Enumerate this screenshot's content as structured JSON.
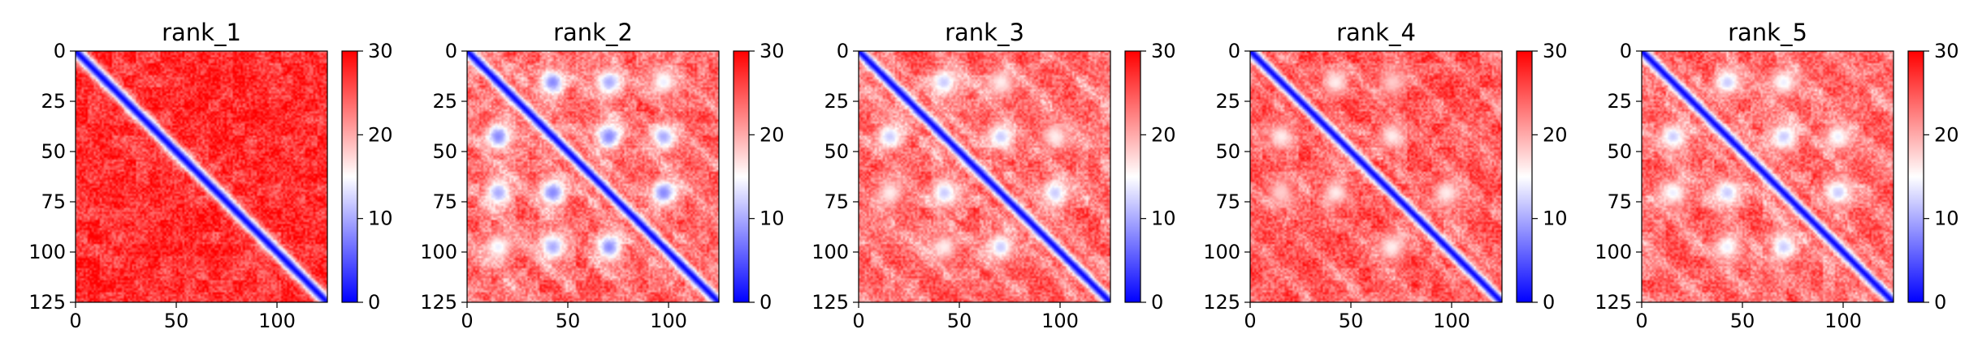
{
  "figure": {
    "panel_titles": [
      "rank_1",
      "rank_2",
      "rank_3",
      "rank_4",
      "rank_5"
    ]
  },
  "chart_data": [
    {
      "type": "heatmap",
      "title": "rank_1",
      "xlabel": "",
      "ylabel": "",
      "xlim": [
        0,
        125
      ],
      "ylim": [
        125,
        0
      ],
      "xticks": [
        0,
        50,
        100
      ],
      "yticks": [
        0,
        25,
        50,
        75,
        100,
        125
      ],
      "colorbar": {
        "range": [
          0,
          30
        ],
        "ticks": [
          0,
          10,
          20,
          30
        ],
        "colormap": "bwr",
        "colors": [
          "#0000ff",
          "#ffffff",
          "#ff0000"
        ]
      },
      "matrix_size": 125,
      "pattern": {
        "diagonal_width": 4.5,
        "background_value": 27,
        "hotspots": []
      }
    },
    {
      "type": "heatmap",
      "title": "rank_2",
      "xlabel": "",
      "ylabel": "",
      "xlim": [
        0,
        125
      ],
      "ylim": [
        125,
        0
      ],
      "xticks": [
        0,
        50,
        100
      ],
      "yticks": [
        0,
        25,
        50,
        75,
        100,
        125
      ],
      "colorbar": {
        "range": [
          0,
          30
        ],
        "ticks": [
          0,
          10,
          20,
          30
        ],
        "colormap": "bwr",
        "colors": [
          "#0000ff",
          "#ffffff",
          "#ff0000"
        ]
      },
      "matrix_size": 125,
      "pattern": {
        "diagonal_width": 4.0,
        "background_value": 24,
        "hotspots": [
          {
            "x": 15,
            "y": 42,
            "value": 8
          },
          {
            "x": 42,
            "y": 15,
            "value": 8
          },
          {
            "x": 42,
            "y": 70,
            "value": 8
          },
          {
            "x": 70,
            "y": 42,
            "value": 8
          },
          {
            "x": 70,
            "y": 97,
            "value": 8
          },
          {
            "x": 97,
            "y": 70,
            "value": 8
          },
          {
            "x": 15,
            "y": 70,
            "value": 10
          },
          {
            "x": 70,
            "y": 15,
            "value": 10
          },
          {
            "x": 42,
            "y": 97,
            "value": 10
          },
          {
            "x": 97,
            "y": 42,
            "value": 10
          },
          {
            "x": 15,
            "y": 97,
            "value": 14
          },
          {
            "x": 97,
            "y": 15,
            "value": 14
          }
        ]
      }
    },
    {
      "type": "heatmap",
      "title": "rank_3",
      "xlabel": "",
      "ylabel": "",
      "xlim": [
        0,
        125
      ],
      "ylim": [
        125,
        0
      ],
      "xticks": [
        0,
        50,
        100
      ],
      "yticks": [
        0,
        25,
        50,
        75,
        100,
        125
      ],
      "colorbar": {
        "range": [
          0,
          30
        ],
        "ticks": [
          0,
          10,
          20,
          30
        ],
        "colormap": "bwr",
        "colors": [
          "#0000ff",
          "#ffffff",
          "#ff0000"
        ]
      },
      "matrix_size": 125,
      "pattern": {
        "diagonal_width": 4.0,
        "background_value": 24,
        "hotspots": [
          {
            "x": 15,
            "y": 42,
            "value": 12
          },
          {
            "x": 42,
            "y": 15,
            "value": 12
          },
          {
            "x": 42,
            "y": 70,
            "value": 12
          },
          {
            "x": 70,
            "y": 42,
            "value": 12
          },
          {
            "x": 70,
            "y": 97,
            "value": 12
          },
          {
            "x": 97,
            "y": 70,
            "value": 12
          },
          {
            "x": 15,
            "y": 70,
            "value": 16
          },
          {
            "x": 70,
            "y": 15,
            "value": 16
          },
          {
            "x": 42,
            "y": 97,
            "value": 16
          },
          {
            "x": 97,
            "y": 42,
            "value": 16
          }
        ]
      }
    },
    {
      "type": "heatmap",
      "title": "rank_4",
      "xlabel": "",
      "ylabel": "",
      "xlim": [
        0,
        125
      ],
      "ylim": [
        125,
        0
      ],
      "xticks": [
        0,
        50,
        100
      ],
      "yticks": [
        0,
        25,
        50,
        75,
        100,
        125
      ],
      "colorbar": {
        "range": [
          0,
          30
        ],
        "ticks": [
          0,
          10,
          20,
          30
        ],
        "colormap": "bwr",
        "colors": [
          "#0000ff",
          "#ffffff",
          "#ff0000"
        ]
      },
      "matrix_size": 125,
      "pattern": {
        "diagonal_width": 4.0,
        "background_value": 25,
        "hotspots": [
          {
            "x": 15,
            "y": 42,
            "value": 16
          },
          {
            "x": 42,
            "y": 15,
            "value": 16
          },
          {
            "x": 42,
            "y": 70,
            "value": 16
          },
          {
            "x": 70,
            "y": 42,
            "value": 16
          },
          {
            "x": 70,
            "y": 97,
            "value": 16
          },
          {
            "x": 97,
            "y": 70,
            "value": 16
          },
          {
            "x": 15,
            "y": 70,
            "value": 18
          },
          {
            "x": 70,
            "y": 15,
            "value": 18
          }
        ]
      }
    },
    {
      "type": "heatmap",
      "title": "rank_5",
      "xlabel": "",
      "ylabel": "",
      "xlim": [
        0,
        125
      ],
      "ylim": [
        125,
        0
      ],
      "xticks": [
        0,
        50,
        100
      ],
      "yticks": [
        0,
        25,
        50,
        75,
        100,
        125
      ],
      "colorbar": {
        "range": [
          0,
          30
        ],
        "ticks": [
          0,
          10,
          20,
          30
        ],
        "colormap": "bwr",
        "colors": [
          "#0000ff",
          "#ffffff",
          "#ff0000"
        ]
      },
      "matrix_size": 125,
      "pattern": {
        "diagonal_width": 4.0,
        "background_value": 24,
        "hotspots": [
          {
            "x": 15,
            "y": 42,
            "value": 12
          },
          {
            "x": 42,
            "y": 15,
            "value": 12
          },
          {
            "x": 42,
            "y": 70,
            "value": 12
          },
          {
            "x": 70,
            "y": 42,
            "value": 12
          },
          {
            "x": 70,
            "y": 97,
            "value": 12
          },
          {
            "x": 97,
            "y": 70,
            "value": 12
          },
          {
            "x": 15,
            "y": 70,
            "value": 14
          },
          {
            "x": 70,
            "y": 15,
            "value": 14
          },
          {
            "x": 42,
            "y": 97,
            "value": 14
          },
          {
            "x": 97,
            "y": 42,
            "value": 14
          }
        ]
      }
    }
  ]
}
